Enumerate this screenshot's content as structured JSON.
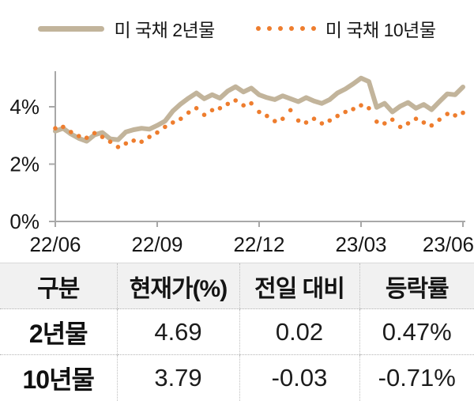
{
  "legend": {
    "series1_label": "미 국채 2년물",
    "series2_label": "미 국채 10년물"
  },
  "chart_data": {
    "type": "line",
    "title": "",
    "xlabel": "",
    "ylabel": "",
    "x_tick_labels": [
      "22/06",
      "22/09",
      "22/12",
      "23/03",
      "23/06"
    ],
    "y_ticks": [
      0,
      2,
      4
    ],
    "y_tick_labels": [
      "0%",
      "2%",
      "4%"
    ],
    "ylim": [
      0,
      5.2
    ],
    "grid": false,
    "legend_position": "top",
    "axis_color": "#a8a8a8",
    "series": [
      {
        "name": "미 국채 2년물",
        "style": "solid",
        "color": "#c2b49b",
        "values": [
          3.15,
          3.25,
          3.05,
          2.9,
          2.8,
          3.02,
          3.1,
          2.88,
          2.85,
          3.12,
          3.2,
          3.25,
          3.22,
          3.35,
          3.5,
          3.85,
          4.1,
          4.3,
          4.48,
          4.28,
          4.42,
          4.3,
          4.55,
          4.7,
          4.52,
          4.65,
          4.42,
          4.32,
          4.25,
          4.38,
          4.28,
          4.18,
          4.32,
          4.2,
          4.12,
          4.25,
          4.48,
          4.62,
          4.8,
          5.0,
          4.88,
          3.98,
          4.12,
          3.82,
          4.02,
          4.15,
          3.95,
          4.08,
          3.9,
          4.18,
          4.45,
          4.42,
          4.69
        ]
      },
      {
        "name": "미 국채 10년물",
        "style": "dotted",
        "color": "#ee7d2e",
        "values": [
          3.25,
          3.3,
          3.12,
          2.98,
          2.92,
          3.08,
          2.95,
          2.78,
          2.6,
          2.72,
          2.82,
          2.78,
          2.95,
          3.1,
          3.3,
          3.45,
          3.58,
          3.8,
          3.95,
          3.72,
          3.88,
          3.95,
          4.1,
          4.22,
          4.05,
          4.12,
          3.82,
          3.68,
          3.5,
          3.58,
          3.88,
          3.52,
          3.45,
          3.58,
          3.42,
          3.52,
          3.68,
          3.82,
          3.92,
          4.05,
          3.95,
          3.48,
          3.42,
          3.55,
          3.3,
          3.42,
          3.58,
          3.45,
          3.35,
          3.55,
          3.75,
          3.7,
          3.79
        ]
      }
    ]
  },
  "table": {
    "headers": [
      "구분",
      "현재가(%)",
      "전일 대비",
      "등락률"
    ],
    "rows": [
      {
        "label": "2년물",
        "current": "4.69",
        "change": "0.02",
        "rate": "0.47%"
      },
      {
        "label": "10년물",
        "current": "3.79",
        "change": "-0.03",
        "rate": "-0.71%"
      }
    ]
  }
}
